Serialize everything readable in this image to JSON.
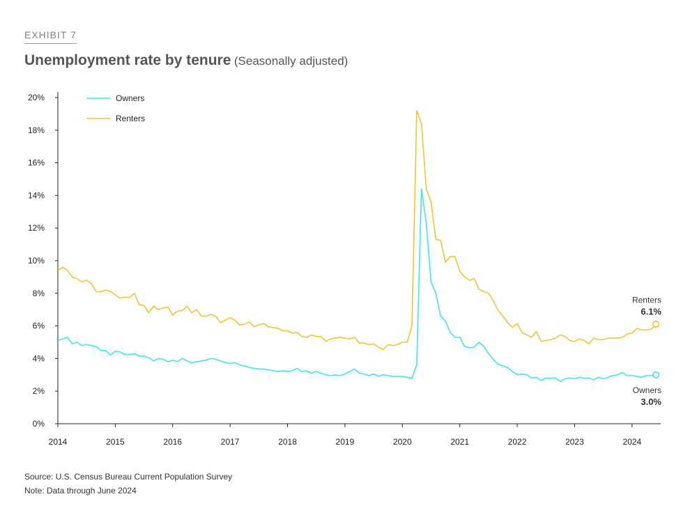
{
  "header": {
    "exhibit": "EXHIBIT 7",
    "title": "Unemployment rate by tenure",
    "subtitle": "(Seasonally adjusted)"
  },
  "footer": {
    "source": "Source: U.S. Census Bureau Current Population Survey",
    "note": "Note: Data through June 2024"
  },
  "colors": {
    "owners": "#3fe6ee",
    "renters": "#f2c531",
    "axis": "#222222"
  },
  "chart_data": {
    "type": "line",
    "xlim": [
      2014,
      2024.5
    ],
    "ylim": [
      0,
      20
    ],
    "x_ticks": [
      2014,
      2015,
      2016,
      2017,
      2018,
      2019,
      2020,
      2021,
      2022,
      2023,
      2024
    ],
    "x_tick_labels": [
      "2014",
      "2015",
      "2016",
      "2017",
      "2018",
      "2019",
      "2020",
      "2021",
      "2022",
      "2023",
      "2024"
    ],
    "y_ticks": [
      0,
      2,
      4,
      6,
      8,
      10,
      12,
      14,
      16,
      18,
      20
    ],
    "y_tick_labels": [
      "0%",
      "2%",
      "4%",
      "6%",
      "8%",
      "10%",
      "12%",
      "14%",
      "16%",
      "18%",
      "20%"
    ],
    "grid": false,
    "legend_position": "top-left",
    "x_start": "2014-01",
    "x_end": "2024-06",
    "frequency": "monthly",
    "series": [
      {
        "name": "Owners",
        "color": "#3fe6ee",
        "end_label": "Owners",
        "end_value_label": "3.0%",
        "values": [
          5.1,
          5.2,
          5.3,
          4.9,
          5.0,
          4.8,
          4.85,
          4.8,
          4.75,
          4.5,
          4.5,
          4.2,
          4.45,
          4.4,
          4.25,
          4.25,
          4.3,
          4.15,
          4.15,
          4.05,
          3.85,
          4.0,
          3.95,
          3.8,
          3.9,
          3.8,
          4.0,
          3.85,
          3.75,
          3.8,
          3.85,
          3.9,
          4.0,
          3.95,
          3.85,
          3.75,
          3.7,
          3.75,
          3.6,
          3.55,
          3.45,
          3.4,
          3.35,
          3.35,
          3.3,
          3.25,
          3.2,
          3.25,
          3.2,
          3.25,
          3.4,
          3.2,
          3.25,
          3.1,
          3.2,
          3.1,
          3.0,
          2.95,
          3.0,
          2.95,
          3.05,
          3.2,
          3.35,
          3.1,
          3.05,
          2.95,
          3.05,
          2.9,
          3.0,
          2.95,
          2.9,
          2.9,
          2.9,
          2.85,
          2.8,
          3.6,
          14.4,
          12.3,
          8.7,
          8.0,
          6.6,
          6.3,
          5.6,
          5.3,
          5.3,
          4.75,
          4.65,
          4.7,
          5.0,
          4.75,
          4.3,
          3.95,
          3.65,
          3.55,
          3.45,
          3.2,
          3.0,
          3.05,
          3.0,
          2.8,
          2.85,
          2.65,
          2.8,
          2.8,
          2.8,
          2.6,
          2.75,
          2.8,
          2.75,
          2.85,
          2.8,
          2.8,
          2.7,
          2.85,
          2.75,
          2.85,
          2.95,
          3.0,
          3.15,
          2.95,
          2.95,
          2.9,
          2.85,
          2.95,
          2.95,
          3.0
        ]
      },
      {
        "name": "Renters",
        "color": "#f2c531",
        "end_label": "Renters",
        "end_value_label": "6.1%",
        "values": [
          9.4,
          9.6,
          9.4,
          9.0,
          8.9,
          8.7,
          8.8,
          8.6,
          8.1,
          8.1,
          8.2,
          8.1,
          7.9,
          7.7,
          7.75,
          7.75,
          8.0,
          7.3,
          7.25,
          6.8,
          7.2,
          7.0,
          7.1,
          7.15,
          6.65,
          6.9,
          6.95,
          7.2,
          6.8,
          7.0,
          6.6,
          6.6,
          6.7,
          6.6,
          6.2,
          6.35,
          6.5,
          6.35,
          6.05,
          6.1,
          6.25,
          5.95,
          6.05,
          6.15,
          5.95,
          5.9,
          5.85,
          5.7,
          5.7,
          5.55,
          5.6,
          5.35,
          5.3,
          5.45,
          5.35,
          5.35,
          5.05,
          5.2,
          5.25,
          5.3,
          5.25,
          5.2,
          5.3,
          4.95,
          4.95,
          4.85,
          4.9,
          4.7,
          4.55,
          4.85,
          4.8,
          4.85,
          5.0,
          5.0,
          6.0,
          19.2,
          18.4,
          14.4,
          13.6,
          11.3,
          11.25,
          9.9,
          10.25,
          10.25,
          9.35,
          9.0,
          8.8,
          8.9,
          8.25,
          8.1,
          8.0,
          7.55,
          6.95,
          6.6,
          6.2,
          5.9,
          6.15,
          5.6,
          5.45,
          5.3,
          5.65,
          5.05,
          5.1,
          5.15,
          5.25,
          5.45,
          5.35,
          5.1,
          5.05,
          5.2,
          5.1,
          4.9,
          5.25,
          5.15,
          5.15,
          5.25,
          5.25,
          5.25,
          5.3,
          5.5,
          5.55,
          5.85,
          5.75,
          5.75,
          5.8,
          6.1
        ]
      }
    ]
  }
}
